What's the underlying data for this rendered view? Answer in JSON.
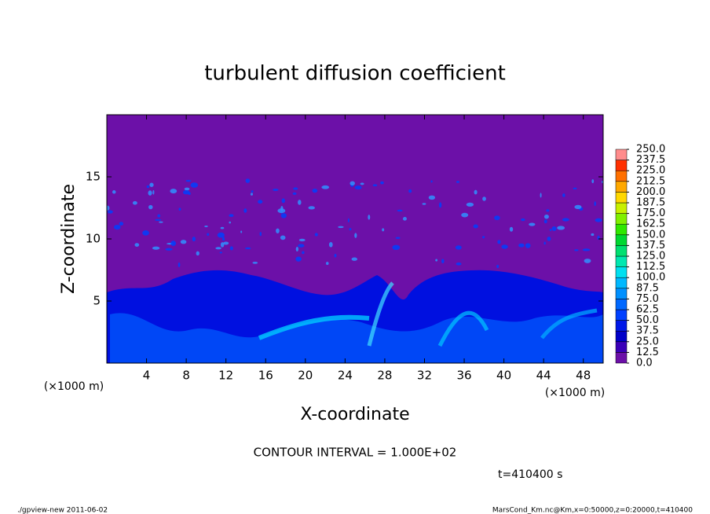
{
  "chart_data": {
    "type": "heatmap",
    "title": "turbulent diffusion coefficient",
    "xlabel": "X-coordinate",
    "ylabel": "Z-coordinate",
    "x_unit": "(×1000 m)",
    "xlim": [
      0,
      50
    ],
    "xticks": [
      4,
      8,
      12,
      16,
      20,
      24,
      28,
      32,
      36,
      40,
      44,
      48
    ],
    "ylim": [
      0,
      20
    ],
    "yticks": [
      5,
      10,
      15
    ],
    "background_color": "#6c10a8",
    "colorbar": {
      "levels": [
        {
          "value": 0,
          "label": "0.0"
        },
        12.5,
        25,
        37.5,
        50,
        62.5,
        75,
        87.5,
        100,
        112.5,
        125,
        137.5,
        150,
        162.5,
        175,
        187.5,
        200,
        212.5,
        225,
        237.5,
        {
          "value": 250,
          "label": "250.0"
        }
      ],
      "level_labels": [
        "0.0",
        "12.5",
        "25.0",
        "37.5",
        "50.0",
        "62.5",
        "75.0",
        "87.5",
        "100.0",
        "112.5",
        "125.0",
        "137.5",
        "150.0",
        "162.5",
        "175.0",
        "187.5",
        "200.0",
        "212.5",
        "225.0",
        "237.5",
        "250.0"
      ],
      "colors": [
        "#6c10a8",
        "#3a00b8",
        "#0000c8",
        "#0018e8",
        "#0040ff",
        "#0068ff",
        "#0090ff",
        "#00b8ff",
        "#00e0f0",
        "#00e8b0",
        "#00e070",
        "#00d830",
        "#30e800",
        "#80f000",
        "#c8f000",
        "#ffd800",
        "#ffa800",
        "#ff7000",
        "#ff3000",
        "#ff8c8c"
      ]
    },
    "annotations": {
      "contour": "CONTOUR INTERVAL = 1.000E+02",
      "time": "t=410400 s",
      "footer_left": "./gpview-new  2011-06-02",
      "footer_right": "MarsCond_Km.nc@Km,x=0:50000,z=0:20000,t=410400"
    }
  }
}
